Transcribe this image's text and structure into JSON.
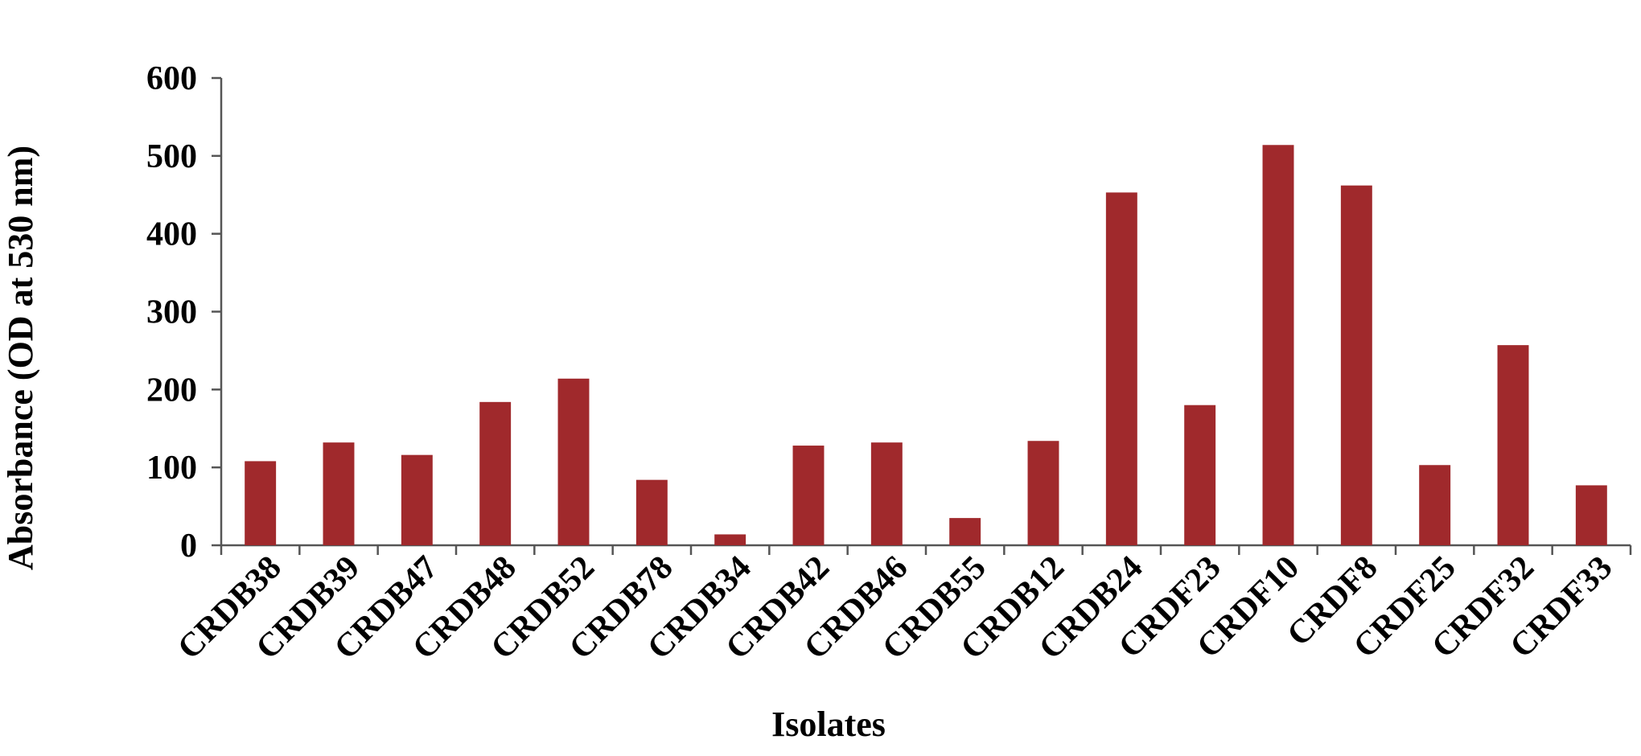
{
  "chart_data": {
    "type": "bar",
    "x_label": "Isolates",
    "y_label": "Absorbance (OD at 530 nm)",
    "categories": [
      "CRDB38",
      "CRDB39",
      "CRDB47",
      "CRDB48",
      "CRDB52",
      "CRDB78",
      "CRDB34",
      "CRDB42",
      "CRDB46",
      "CRDB55",
      "CRDB12",
      "CRDB24",
      "CRDF23",
      "CRDF10",
      "CRDF8",
      "CRDF25",
      "CRDF32",
      "CRDF33"
    ],
    "values": [
      108,
      132,
      116,
      184,
      214,
      84,
      14,
      128,
      132,
      35,
      134,
      453,
      180,
      514,
      462,
      103,
      257,
      77
    ],
    "color": "#a0292c",
    "ylim": [
      0,
      600
    ],
    "yticks": [
      0,
      100,
      200,
      300,
      400,
      500,
      600
    ],
    "grid": false
  }
}
